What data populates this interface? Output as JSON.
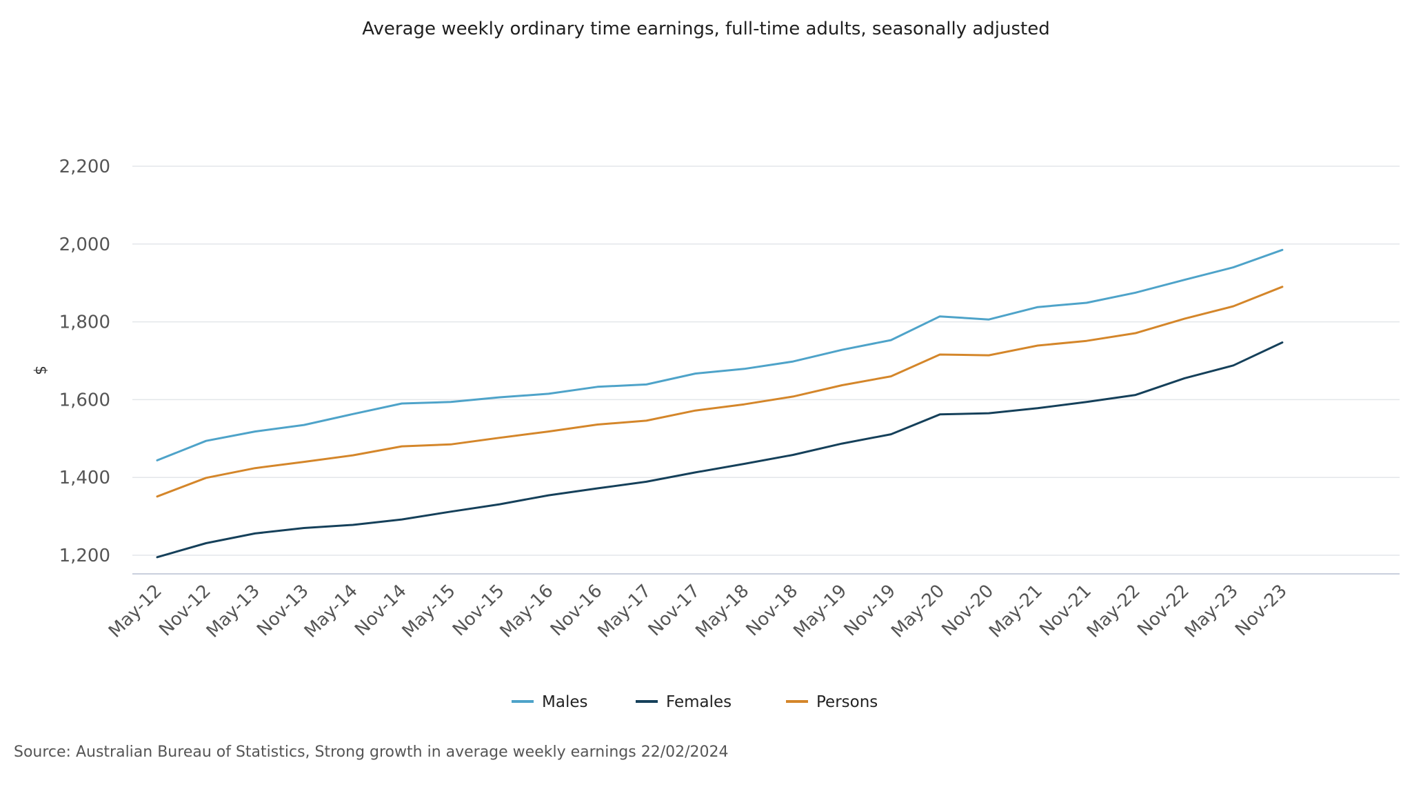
{
  "chart_data": {
    "type": "line",
    "title": "Average weekly ordinary time earnings, full-time adults, seasonally adjusted",
    "ylabel": "$",
    "xlabel": "",
    "ylim": [
      1150,
      2250
    ],
    "yticks": [
      1200,
      1400,
      1600,
      1800,
      2000,
      2200
    ],
    "ytick_labels": [
      "1,200",
      "1,400",
      "1,600",
      "1,800",
      "2,000",
      "2,200"
    ],
    "grid": true,
    "legend_position": "bottom-center",
    "categories": [
      "May-12",
      "Nov-12",
      "May-13",
      "Nov-13",
      "May-14",
      "Nov-14",
      "May-15",
      "Nov-15",
      "May-16",
      "Nov-16",
      "May-17",
      "Nov-17",
      "May-18",
      "Nov-18",
      "May-19",
      "Nov-19",
      "May-20",
      "Nov-20",
      "May-21",
      "Nov-21",
      "May-22",
      "Nov-22",
      "May-23",
      "Nov-23"
    ],
    "series": [
      {
        "name": "Males",
        "color": "#4ea3c9",
        "values": [
          1444,
          1494,
          1518,
          1535,
          1563,
          1590,
          1594,
          1606,
          1615,
          1633,
          1639,
          1667,
          1679,
          1698,
          1728,
          1753,
          1814,
          1806,
          1838,
          1849,
          1875,
          1908,
          1940,
          1985
        ]
      },
      {
        "name": "Females",
        "color": "#15405a",
        "values": [
          1195,
          1231,
          1256,
          1270,
          1278,
          1292,
          1312,
          1331,
          1354,
          1372,
          1389,
          1413,
          1435,
          1458,
          1487,
          1511,
          1562,
          1565,
          1578,
          1594,
          1612,
          1655,
          1688,
          1747
        ]
      },
      {
        "name": "Persons",
        "color": "#d4862a",
        "values": [
          1351,
          1399,
          1424,
          1440,
          1457,
          1480,
          1485,
          1502,
          1518,
          1536,
          1546,
          1572,
          1588,
          1608,
          1637,
          1660,
          1716,
          1714,
          1739,
          1751,
          1771,
          1808,
          1840,
          1890
        ]
      }
    ],
    "source": "Source: Australian Bureau of Statistics, Strong growth in average weekly earnings 22/02/2024"
  }
}
